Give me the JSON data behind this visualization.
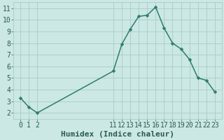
{
  "x": [
    0,
    1,
    2,
    11,
    12,
    13,
    14,
    15,
    16,
    17,
    18,
    19,
    20,
    21,
    22,
    23
  ],
  "y": [
    3.3,
    2.5,
    2.0,
    5.6,
    7.9,
    9.2,
    10.3,
    10.4,
    11.1,
    9.3,
    8.0,
    7.5,
    6.6,
    5.0,
    4.8,
    3.8
  ],
  "line_color": "#2e7d6e",
  "marker_color": "#2e7d6e",
  "bg_color": "#cce8e4",
  "grid_color_major": "#a8ccc8",
  "grid_color_minor": "#b8d8d4",
  "xlabel": "Humidex (Indice chaleur)",
  "xlim": [
    -0.8,
    23.8
  ],
  "ylim": [
    1.5,
    11.5
  ],
  "yticks": [
    2,
    3,
    4,
    5,
    6,
    7,
    8,
    9,
    10,
    11
  ],
  "xticks": [
    0,
    1,
    2,
    11,
    12,
    13,
    14,
    15,
    16,
    17,
    18,
    19,
    20,
    21,
    22,
    23
  ],
  "font_color": "#2a5a54",
  "xlabel_fontsize": 8,
  "tick_fontsize": 7,
  "linewidth": 1.1,
  "markersize": 2.5
}
